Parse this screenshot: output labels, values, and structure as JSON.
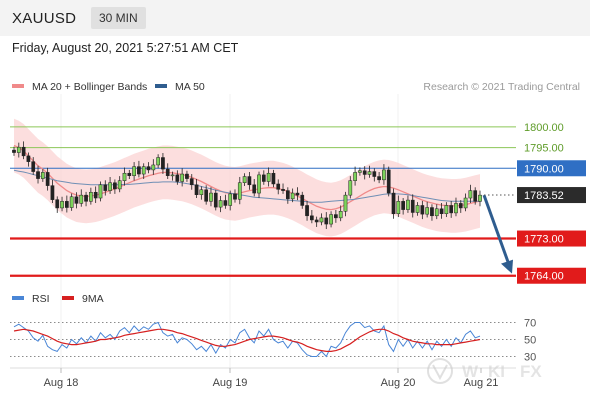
{
  "header": {
    "symbol": "XAUUSD",
    "timeframe": "30 MIN",
    "datetime": "Friday, August 20, 2021 5:27:51 AM CET"
  },
  "chart_data": [
    {
      "type": "candlestick",
      "legend": [
        {
          "label": "MA 20 + Bollinger Bands",
          "color": "#f08a8a"
        },
        {
          "label": "MA 50",
          "color": "#2f5d8f"
        }
      ],
      "credit": "Research © 2021 Trading Central",
      "x_ticks": [
        "Aug 18",
        "Aug 19",
        "Aug 20",
        "Aug 21"
      ],
      "ylim": [
        1762,
        1807
      ],
      "last_price": {
        "label": "1783.52",
        "value": 1783.52
      },
      "levels": [
        {
          "label": "1800.00",
          "value": 1800.0,
          "color": "#8cc657",
          "style": "thin"
        },
        {
          "label": "1795.00",
          "value": 1795.0,
          "color": "#8cc657",
          "style": "thin"
        },
        {
          "label": "1790.00",
          "value": 1790.0,
          "color": "#2f6fc4",
          "style": "thin"
        },
        {
          "label": "1773.00",
          "value": 1773.0,
          "color": "#e11b1b",
          "style": "thick"
        },
        {
          "label": "1764.00",
          "value": 1764.0,
          "color": "#e11b1b",
          "style": "thick"
        }
      ],
      "forecast_arrow": {
        "from": 1783.5,
        "to": 1764.5,
        "color": "#2f5d8f"
      },
      "price_series": [
        1793.8,
        1795.1,
        1793.0,
        1791.6,
        1789.2,
        1787.5,
        1789.0,
        1785.8,
        1782.4,
        1780.4,
        1782.0,
        1780.5,
        1783.1,
        1781.5,
        1783.5,
        1782.0,
        1784.2,
        1782.8,
        1786.0,
        1784.6,
        1786.5,
        1785.0,
        1787.0,
        1788.8,
        1788.2,
        1790.4,
        1788.6,
        1790.4,
        1789.6,
        1790.8,
        1792.6,
        1789.8,
        1788.2,
        1788.4,
        1786.8,
        1788.6,
        1787.5,
        1786.0,
        1783.6,
        1784.8,
        1782.0,
        1784.0,
        1780.6,
        1782.2,
        1781.0,
        1783.8,
        1782.5,
        1786.5,
        1788.0,
        1786.0,
        1784.0,
        1788.4,
        1786.8,
        1788.8,
        1786.2,
        1784.9,
        1784.6,
        1782.6,
        1784.0,
        1783.5,
        1781.0,
        1778.5,
        1777.5,
        1777.0,
        1778.0,
        1776.5,
        1778.8,
        1778.0,
        1779.6,
        1783.5,
        1787.0,
        1789.0,
        1789.4,
        1788.5,
        1789.2,
        1788.0,
        1787.2,
        1789.6,
        1784.0,
        1779.0,
        1782.0,
        1780.0,
        1782.3,
        1779.3,
        1781.0,
        1778.9,
        1780.5,
        1778.5,
        1780.2,
        1779.0,
        1781.0,
        1779.2,
        1781.5,
        1780.4,
        1782.8,
        1784.6,
        1782.0,
        1783.5
      ],
      "ma20": [
        1795.5,
        1795.0,
        1794.2,
        1793.0,
        1791.8,
        1790.6,
        1789.8,
        1788.8,
        1787.6,
        1786.4,
        1785.5,
        1784.6,
        1784.0,
        1783.5,
        1783.3,
        1783.2,
        1783.3,
        1783.5,
        1783.8,
        1784.2,
        1784.6,
        1785.0,
        1785.5,
        1786.0,
        1786.5,
        1787.0,
        1787.4,
        1787.8,
        1788.2,
        1788.5,
        1788.8,
        1789.0,
        1789.0,
        1788.9,
        1788.7,
        1788.5,
        1788.2,
        1787.8,
        1787.3,
        1786.8,
        1786.2,
        1785.6,
        1785.0,
        1784.5,
        1784.1,
        1783.9,
        1783.8,
        1784.0,
        1784.3,
        1784.6,
        1784.8,
        1785.0,
        1785.2,
        1785.3,
        1785.3,
        1785.1,
        1784.8,
        1784.4,
        1783.9,
        1783.3,
        1782.7,
        1782.0,
        1781.4,
        1780.8,
        1780.4,
        1780.1,
        1780.0,
        1780.2,
        1780.6,
        1781.2,
        1781.9,
        1782.6,
        1783.3,
        1784.0,
        1784.6,
        1785.1,
        1785.4,
        1785.6,
        1785.5,
        1785.2,
        1784.8,
        1784.3,
        1783.8,
        1783.3,
        1782.8,
        1782.3,
        1781.9,
        1781.6,
        1781.3,
        1781.1,
        1781.0,
        1780.9,
        1780.9,
        1781.0,
        1781.2,
        1781.5,
        1781.8,
        1782.1
      ],
      "ma50": [
        1789.5,
        1789.3,
        1789.1,
        1788.8,
        1788.5,
        1788.2,
        1787.9,
        1787.6,
        1787.3,
        1787.0,
        1786.8,
        1786.6,
        1786.4,
        1786.3,
        1786.2,
        1786.1,
        1786.0,
        1786.0,
        1786.0,
        1786.0,
        1786.0,
        1786.0,
        1786.0,
        1786.1,
        1786.1,
        1786.2,
        1786.3,
        1786.4,
        1786.5,
        1786.6,
        1786.6,
        1786.7,
        1786.7,
        1786.7,
        1786.6,
        1786.5,
        1786.3,
        1786.1,
        1785.9,
        1785.6,
        1785.3,
        1785.0,
        1784.7,
        1784.4,
        1784.2,
        1784.0,
        1783.8,
        1783.6,
        1783.4,
        1783.2,
        1783.0,
        1782.9,
        1782.8,
        1782.7,
        1782.6,
        1782.5,
        1782.4,
        1782.3,
        1782.2,
        1782.1,
        1782.0,
        1781.9,
        1781.8,
        1781.8,
        1781.8,
        1781.9,
        1782.0,
        1782.1,
        1782.2,
        1782.3,
        1782.4,
        1782.5,
        1782.7,
        1782.9,
        1783.1,
        1783.3,
        1783.5,
        1783.7,
        1783.8,
        1783.8,
        1783.8,
        1783.7,
        1783.6,
        1783.4,
        1783.2,
        1783.0,
        1782.8,
        1782.6,
        1782.4,
        1782.2,
        1782.1,
        1782.0,
        1782.0,
        1782.0,
        1782.0,
        1782.0,
        1782.0,
        1782.0
      ],
      "bb_width": 6.5
    },
    {
      "type": "line",
      "legend": [
        {
          "label": "RSI",
          "color": "#4a86d6"
        },
        {
          "label": "9MA",
          "color": "#d62020"
        }
      ],
      "ylim": [
        20,
        80
      ],
      "y_ticks": [
        {
          "label": "70",
          "value": 70
        },
        {
          "label": "50",
          "value": 50
        },
        {
          "label": "30",
          "value": 30
        }
      ],
      "rsi": [
        65,
        68,
        64,
        60,
        52,
        48,
        55,
        42,
        38,
        36,
        44,
        40,
        50,
        45,
        52,
        46,
        54,
        48,
        58,
        52,
        56,
        50,
        60,
        64,
        58,
        66,
        60,
        65,
        62,
        68,
        70,
        58,
        54,
        56,
        46,
        52,
        50,
        45,
        38,
        42,
        36,
        44,
        34,
        44,
        40,
        50,
        46,
        58,
        62,
        52,
        46,
        60,
        54,
        62,
        50,
        46,
        48,
        40,
        48,
        46,
        38,
        32,
        30,
        30,
        36,
        30,
        42,
        40,
        46,
        58,
        66,
        70,
        70,
        64,
        66,
        60,
        58,
        66,
        44,
        36,
        50,
        42,
        50,
        40,
        48,
        40,
        48,
        38,
        48,
        42,
        50,
        42,
        52,
        46,
        56,
        60,
        52,
        54
      ],
      "ma9": [
        60,
        61,
        62,
        61,
        60,
        58,
        56,
        54,
        51,
        48,
        46,
        45,
        44,
        44,
        45,
        46,
        47,
        48,
        50,
        50,
        51,
        52,
        53,
        55,
        56,
        57,
        58,
        59,
        60,
        61,
        62,
        62,
        61,
        60,
        58,
        57,
        55,
        53,
        51,
        49,
        47,
        45,
        43,
        42,
        42,
        43,
        44,
        46,
        48,
        50,
        51,
        52,
        53,
        54,
        54,
        53,
        52,
        50,
        48,
        47,
        45,
        42,
        40,
        38,
        37,
        36,
        36,
        37,
        39,
        42,
        45,
        49,
        53,
        56,
        59,
        61,
        62,
        62,
        60,
        57,
        55,
        52,
        50,
        48,
        47,
        46,
        45,
        45,
        44,
        44,
        44,
        44,
        45,
        46,
        47,
        48,
        49,
        50
      ]
    }
  ]
}
